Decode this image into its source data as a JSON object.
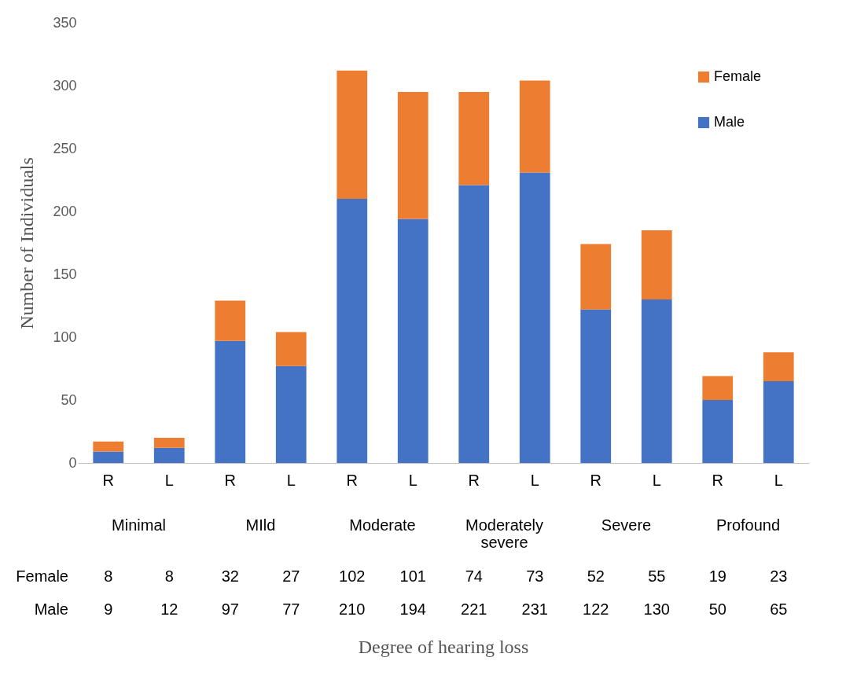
{
  "chart_data": {
    "type": "bar",
    "stacked": true,
    "ylabel": "Number of Individuals",
    "categories": [
      "R",
      "L",
      "R",
      "L",
      "R",
      "L",
      "R",
      "L",
      "R",
      "L",
      "R",
      "L"
    ],
    "annotations": [
      "Minimal",
      "MIld",
      "Moderate",
      "Moderately severe",
      "Severe",
      "Profound",
      "Degree of hearing loss"
    ],
    "series": [
      {
        "name": "Male",
        "color": "#4472c4",
        "values": [
          9,
          12,
          97,
          77,
          210,
          194,
          221,
          231,
          122,
          130,
          50,
          65
        ]
      },
      {
        "name": "Female",
        "color": "#ed7d31",
        "values": [
          8,
          8,
          32,
          27,
          102,
          101,
          74,
          73,
          52,
          55,
          19,
          23
        ]
      }
    ],
    "ylim": [
      0,
      350
    ],
    "yticks": [
      0,
      50,
      100,
      150,
      200,
      250,
      300,
      350
    ],
    "legend": "top right",
    "data_labels": true
  }
}
